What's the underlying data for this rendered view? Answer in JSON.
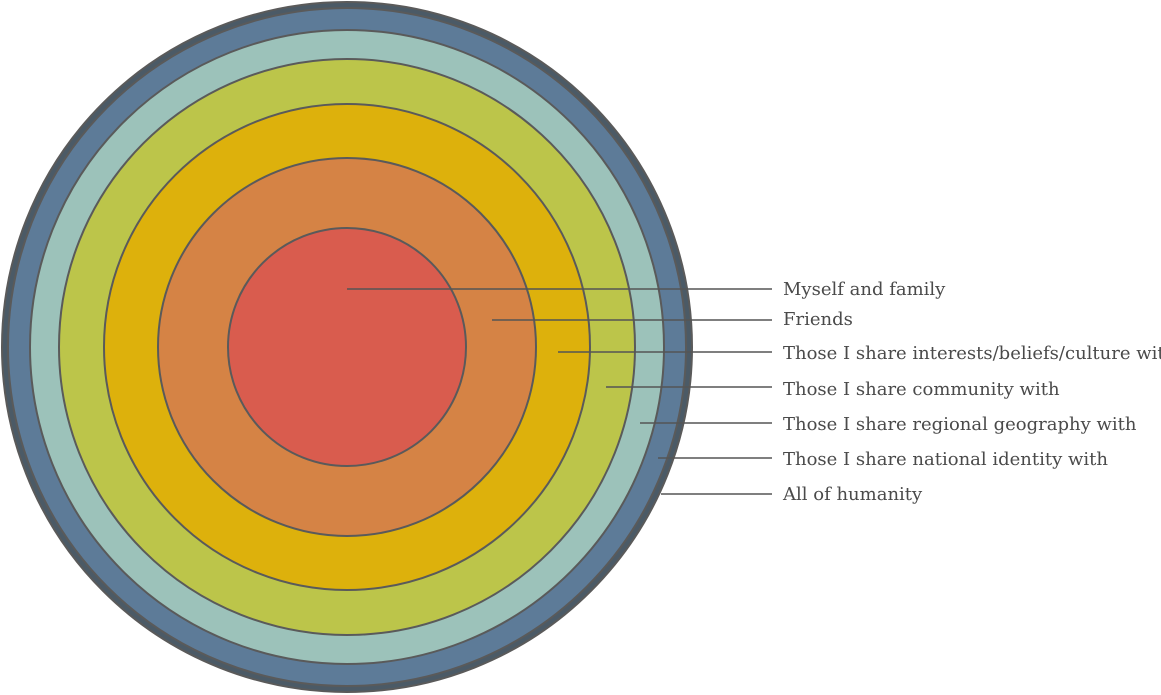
{
  "diagram": {
    "layers": [
      {
        "id": "humanity",
        "label": "All of humanity",
        "color": "#4b5a66"
      },
      {
        "id": "national",
        "label": "Those I share national identity with",
        "color": "#5d7b98"
      },
      {
        "id": "regional",
        "label": "Those I share regional geography with",
        "color": "#9cc2ba"
      },
      {
        "id": "community",
        "label": "Those I share community with",
        "color": "#bcc54a"
      },
      {
        "id": "interests",
        "label": "Those I share interests/beliefs/culture with",
        "color": "#ddb10c"
      },
      {
        "id": "friends",
        "label": "Friends",
        "color": "#d58345"
      },
      {
        "id": "family",
        "label": "Myself and family",
        "color": "#d95c4e"
      }
    ],
    "line_color": "#555555",
    "text_color": "#4a4a4a"
  }
}
